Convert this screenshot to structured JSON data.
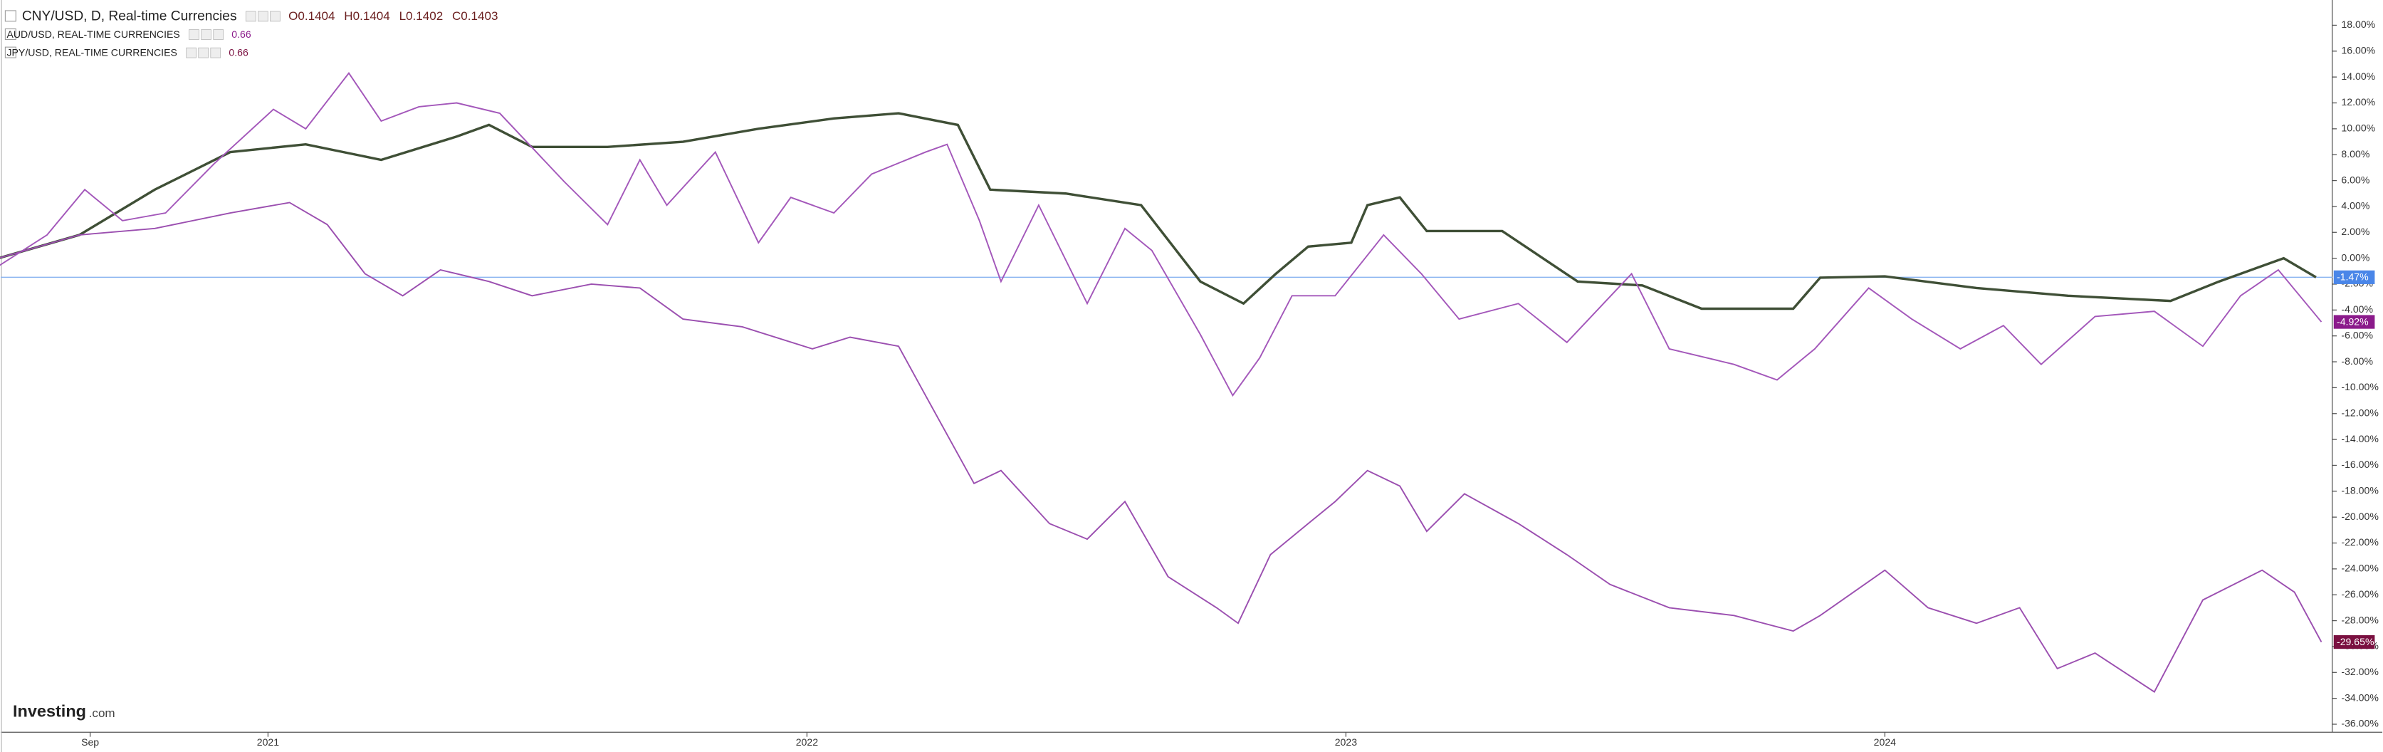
{
  "chart_data": {
    "type": "line",
    "logo": [
      "Investing",
      ".com"
    ],
    "xlim": [
      2020.504,
      2024.83
    ],
    "ylim": [
      -36.62,
      19.95
    ],
    "grid": false,
    "xticks": [
      {
        "value": 2020.67,
        "label": "Sep"
      },
      2021,
      2022,
      2023,
      2024
    ],
    "yticks": [
      {
        "value": 18,
        "label": "18.00%"
      },
      {
        "value": 16,
        "label": "16.00%"
      },
      {
        "value": 14,
        "label": "14.00%"
      },
      {
        "value": 12,
        "label": "12.00%"
      },
      {
        "value": 10,
        "label": "10.00%"
      },
      {
        "value": 8,
        "label": "8.00%"
      },
      {
        "value": 6,
        "label": "6.00%"
      },
      {
        "value": 4,
        "label": "4.00%"
      },
      {
        "value": 2,
        "label": "2.00%"
      },
      {
        "value": 0,
        "label": "0.00%"
      },
      {
        "value": -2,
        "label": "-2.00%"
      },
      {
        "value": -4,
        "label": "-4.00%"
      },
      {
        "value": -6,
        "label": "-6.00%"
      },
      {
        "value": -8,
        "label": "-8.00%"
      },
      {
        "value": -10,
        "label": "-10.00%"
      },
      {
        "value": -12,
        "label": "-12.00%"
      },
      {
        "value": -14,
        "label": "-14.00%"
      },
      {
        "value": -16,
        "label": "-16.00%"
      },
      {
        "value": -18,
        "label": "-18.00%"
      },
      {
        "value": -20,
        "label": "-20.00%"
      },
      {
        "value": -22,
        "label": "-22.00%"
      },
      {
        "value": -24,
        "label": "-24.00%"
      },
      {
        "value": -26,
        "label": "-26.00%"
      },
      {
        "value": -28,
        "label": "-28.00%"
      },
      {
        "value": -30,
        "label": "-30.00%"
      },
      {
        "value": -32,
        "label": "-32.00%"
      },
      {
        "value": -34,
        "label": "-34.00%"
      },
      {
        "value": -36,
        "label": "-36.00%"
      }
    ],
    "series": [
      {
        "name": "CNY/USD, D, Real-time Currencies",
        "color": "#3f4f36",
        "label_color": "#4a86e8",
        "ohlc": [
          "O0.1404",
          "H0.1404",
          "L0.1402",
          "C0.1403"
        ],
        "x": [
          2020.5,
          2020.65,
          2020.79,
          2020.93,
          2021.07,
          2021.21,
          2021.35,
          2021.41,
          2021.49,
          2021.63,
          2021.77,
          2021.91,
          2022.05,
          2022.17,
          2022.28,
          2022.34,
          2022.48,
          2022.62,
          2022.73,
          2022.81,
          2022.87,
          2022.93,
          2023.01,
          2023.04,
          2023.1,
          2023.15,
          2023.29,
          2023.43,
          2023.55,
          2023.66,
          2023.83,
          2023.88,
          2024.0,
          2024.17,
          2024.34,
          2024.53,
          2024.62,
          2024.74,
          2024.8
        ],
        "values": [
          0,
          1.8,
          5.3,
          8.2,
          8.8,
          7.6,
          9.4,
          10.3,
          8.6,
          8.6,
          9.0,
          10.0,
          10.8,
          11.2,
          10.3,
          5.3,
          5.0,
          4.1,
          -1.8,
          -3.5,
          -1.2,
          0.9,
          1.2,
          4.1,
          4.7,
          2.1,
          2.1,
          -1.8,
          -2.1,
          -3.9,
          -3.9,
          -1.5,
          -1.4,
          -2.3,
          -2.9,
          -3.3,
          -1.8,
          0.0,
          -1.47
        ],
        "value_labels": [
          null,
          null,
          null,
          null,
          null,
          null,
          null,
          null,
          null,
          null,
          null,
          null,
          null,
          null,
          null,
          null,
          null,
          null,
          null,
          null,
          null,
          null,
          null,
          null,
          null,
          null,
          null,
          null,
          null,
          null,
          null,
          null,
          null,
          null,
          null,
          null,
          null,
          null,
          "-1.47%"
        ]
      },
      {
        "name": "AUD/USD, REAL-TIME CURRENCIES",
        "color": "#a357ba",
        "label_color": "#8b1a8b",
        "legend_value": "0.66",
        "x": [
          2020.5,
          2020.59,
          2020.66,
          2020.73,
          2020.81,
          2020.9,
          2021.01,
          2021.07,
          2021.15,
          2021.21,
          2021.28,
          2021.35,
          2021.43,
          2021.55,
          2021.63,
          2021.69,
          2021.74,
          2021.83,
          2021.91,
          2021.97,
          2022.05,
          2022.12,
          2022.22,
          2022.26,
          2022.32,
          2022.36,
          2022.43,
          2022.52,
          2022.59,
          2022.64,
          2022.73,
          2022.79,
          2022.84,
          2022.9,
          2022.98,
          2023.07,
          2023.14,
          2023.21,
          2023.32,
          2023.41,
          2023.53,
          2023.6,
          2023.72,
          2023.8,
          2023.87,
          2023.97,
          2024.05,
          2024.14,
          2024.22,
          2024.29,
          2024.39,
          2024.5,
          2024.59,
          2024.66,
          2024.73,
          2024.81
        ],
        "values": [
          -0.6,
          1.8,
          5.3,
          2.9,
          3.5,
          7.3,
          11.5,
          10.0,
          14.3,
          10.6,
          11.7,
          12.0,
          11.2,
          5.9,
          2.6,
          7.6,
          4.1,
          8.2,
          1.2,
          4.7,
          3.5,
          6.5,
          8.2,
          8.8,
          2.9,
          -1.8,
          4.1,
          -3.5,
          2.3,
          0.6,
          -5.9,
          -10.6,
          -7.7,
          -2.9,
          -2.9,
          1.8,
          -1.2,
          -4.7,
          -3.5,
          -6.5,
          -1.2,
          -7.0,
          -8.2,
          -9.4,
          -7.0,
          -2.3,
          -4.7,
          -7.0,
          -5.2,
          -8.2,
          -4.5,
          -4.1,
          -6.8,
          -2.9,
          -0.9,
          -4.92
        ],
        "value_labels": [
          null,
          null,
          null,
          null,
          null,
          null,
          null,
          null,
          null,
          null,
          null,
          null,
          null,
          null,
          null,
          null,
          null,
          null,
          null,
          null,
          null,
          null,
          null,
          null,
          null,
          null,
          null,
          null,
          null,
          null,
          null,
          null,
          null,
          null,
          null,
          null,
          null,
          null,
          null,
          null,
          null,
          null,
          null,
          null,
          null,
          null,
          null,
          null,
          null,
          null,
          null,
          null,
          null,
          null,
          null,
          "-4.92%"
        ]
      },
      {
        "name": "JPY/USD, REAL-TIME CURRENCIES",
        "color": "#9b4fb0",
        "label_color": "#7a1040",
        "legend_value": "0.66",
        "x": [
          2020.5,
          2020.65,
          2020.79,
          2020.93,
          2021.04,
          2021.11,
          2021.18,
          2021.25,
          2021.32,
          2021.41,
          2021.49,
          2021.6,
          2021.69,
          2021.77,
          2021.88,
          2022.01,
          2022.08,
          2022.17,
          2022.22,
          2022.31,
          2022.36,
          2022.45,
          2022.52,
          2022.59,
          2022.67,
          2022.76,
          2022.8,
          2022.86,
          2022.93,
          2022.98,
          2023.04,
          2023.1,
          2023.15,
          2023.22,
          2023.32,
          2023.41,
          2023.49,
          2023.6,
          2023.72,
          2023.83,
          2023.88,
          2024.0,
          2024.08,
          2024.17,
          2024.25,
          2024.32,
          2024.39,
          2024.5,
          2024.59,
          2024.7,
          2024.76,
          2024.81
        ],
        "values": [
          0,
          1.8,
          2.3,
          3.5,
          4.3,
          2.6,
          -1.2,
          -2.9,
          -0.9,
          -1.8,
          -2.9,
          -2.0,
          -2.3,
          -4.7,
          -5.3,
          -7.0,
          -6.1,
          -6.8,
          -10.6,
          -17.4,
          -16.4,
          -20.5,
          -21.7,
          -18.8,
          -24.6,
          -27.0,
          -28.2,
          -22.9,
          -20.5,
          -18.8,
          -16.4,
          -17.6,
          -21.1,
          -18.2,
          -20.5,
          -22.9,
          -25.2,
          -27.0,
          -27.6,
          -28.8,
          -27.6,
          -24.1,
          -27.0,
          -28.2,
          -27.0,
          -31.7,
          -30.5,
          -33.5,
          -26.4,
          -24.1,
          -25.8,
          -29.65
        ],
        "value_labels": [
          null,
          null,
          null,
          null,
          null,
          null,
          null,
          null,
          null,
          null,
          null,
          null,
          null,
          null,
          null,
          null,
          null,
          null,
          null,
          null,
          null,
          null,
          null,
          null,
          null,
          null,
          null,
          null,
          null,
          null,
          null,
          null,
          null,
          null,
          null,
          null,
          null,
          null,
          null,
          null,
          null,
          null,
          null,
          null,
          null,
          null,
          null,
          null,
          null,
          null,
          null,
          "-29.65%"
        ]
      }
    ]
  }
}
